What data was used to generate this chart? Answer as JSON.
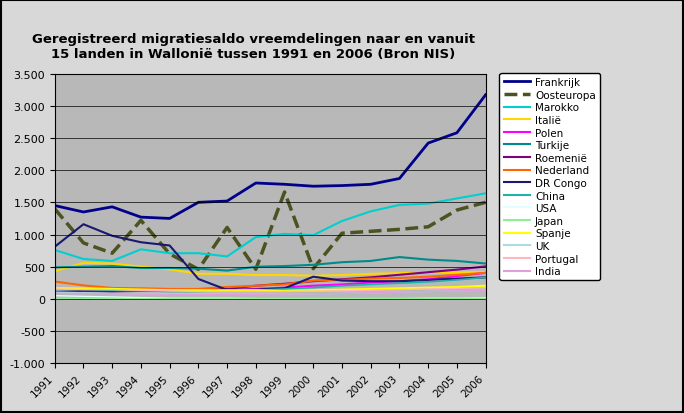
{
  "title": "Geregistreerd migratiesaldo vreemdelingen naar en vanuit\n15 landen in Wallonië tussen 1991 en 2006 (Bron NIS)",
  "years": [
    1991,
    1992,
    1993,
    1994,
    1995,
    1996,
    1997,
    1998,
    1999,
    2000,
    2001,
    2002,
    2003,
    2004,
    2005,
    2006
  ],
  "series": [
    {
      "name": "Frankrijk",
      "color": "#00008B",
      "linestyle": "-",
      "linewidth": 2.0,
      "values": [
        1450,
        1350,
        1430,
        1270,
        1250,
        1500,
        1520,
        1800,
        1780,
        1750,
        1760,
        1780,
        1870,
        2420,
        2580,
        3170
      ]
    },
    {
      "name": "Oosteuropa",
      "color": "#4B5320",
      "linestyle": "--",
      "linewidth": 2.5,
      "values": [
        1400,
        870,
        710,
        1220,
        700,
        460,
        1110,
        460,
        1660,
        470,
        1020,
        1050,
        1080,
        1120,
        1380,
        1500
      ]
    },
    {
      "name": "Marokko",
      "color": "#00CFCF",
      "linestyle": "-",
      "linewidth": 1.5,
      "values": [
        760,
        620,
        590,
        770,
        710,
        710,
        660,
        960,
        1010,
        990,
        1210,
        1360,
        1460,
        1480,
        1560,
        1640
      ]
    },
    {
      "name": "Italië",
      "color": "#FFD700",
      "linestyle": "-",
      "linewidth": 1.5,
      "values": [
        430,
        560,
        550,
        500,
        460,
        390,
        390,
        370,
        370,
        360,
        370,
        390,
        400,
        410,
        410,
        420
      ]
    },
    {
      "name": "Polen",
      "color": "#FF00FF",
      "linestyle": "-",
      "linewidth": 1.5,
      "values": [
        150,
        160,
        140,
        135,
        125,
        125,
        135,
        155,
        175,
        205,
        225,
        255,
        275,
        305,
        355,
        405
      ]
    },
    {
      "name": "Turkije",
      "color": "#008B8B",
      "linestyle": "-",
      "linewidth": 1.5,
      "values": [
        490,
        500,
        510,
        480,
        480,
        470,
        440,
        500,
        510,
        530,
        570,
        590,
        650,
        610,
        590,
        550
      ]
    },
    {
      "name": "Roemenië",
      "color": "#800080",
      "linestyle": "-",
      "linewidth": 1.5,
      "values": [
        105,
        125,
        115,
        125,
        135,
        145,
        155,
        205,
        235,
        275,
        305,
        335,
        375,
        415,
        455,
        505
      ]
    },
    {
      "name": "Nederland",
      "color": "#FF6600",
      "linestyle": "-",
      "linewidth": 1.5,
      "values": [
        270,
        210,
        170,
        165,
        155,
        155,
        185,
        205,
        225,
        285,
        295,
        315,
        325,
        345,
        375,
        405
      ]
    },
    {
      "name": "DR Congo",
      "color": "#191970",
      "linestyle": "-",
      "linewidth": 1.5,
      "values": [
        810,
        1160,
        980,
        880,
        830,
        310,
        140,
        145,
        165,
        345,
        285,
        275,
        275,
        295,
        315,
        335
      ]
    },
    {
      "name": "China",
      "color": "#20B2AA",
      "linestyle": "-",
      "linewidth": 1.2,
      "values": [
        145,
        145,
        135,
        125,
        115,
        115,
        125,
        135,
        155,
        175,
        205,
        225,
        245,
        265,
        295,
        335
      ]
    },
    {
      "name": "USA",
      "color": "#E0FFFF",
      "linestyle": "-",
      "linewidth": 1.0,
      "values": [
        50,
        40,
        30,
        20,
        10,
        10,
        10,
        5,
        5,
        5,
        5,
        5,
        5,
        10,
        10,
        15
      ]
    },
    {
      "name": "Japan",
      "color": "#90EE90",
      "linestyle": "-",
      "linewidth": 1.0,
      "values": [
        10,
        10,
        8,
        5,
        2,
        2,
        2,
        2,
        2,
        2,
        2,
        2,
        5,
        5,
        5,
        5
      ]
    },
    {
      "name": "Spanje",
      "color": "#FFFF00",
      "linestyle": "-",
      "linewidth": 1.5,
      "values": [
        165,
        165,
        155,
        145,
        135,
        135,
        135,
        135,
        125,
        135,
        145,
        155,
        165,
        175,
        185,
        205
      ]
    },
    {
      "name": "UK",
      "color": "#ADD8E6",
      "linestyle": "-",
      "linewidth": 1.0,
      "values": [
        105,
        95,
        85,
        85,
        80,
        80,
        75,
        75,
        75,
        80,
        85,
        95,
        105,
        115,
        125,
        135
      ]
    },
    {
      "name": "Portugal",
      "color": "#FFB6C1",
      "linestyle": "-",
      "linewidth": 1.0,
      "values": [
        155,
        145,
        145,
        135,
        125,
        115,
        115,
        115,
        115,
        120,
        125,
        135,
        145,
        155,
        165,
        175
      ]
    },
    {
      "name": "India",
      "color": "#DDA0DD",
      "linestyle": "-",
      "linewidth": 1.0,
      "values": [
        85,
        85,
        80,
        75,
        70,
        70,
        70,
        70,
        75,
        80,
        85,
        95,
        105,
        115,
        125,
        135
      ]
    }
  ],
  "ylim": [
    -1000,
    3500
  ],
  "yticks": [
    -1000,
    -500,
    0,
    500,
    1000,
    1500,
    2000,
    2500,
    3000,
    3500
  ],
  "ytick_labels": [
    "-1.000",
    "-500",
    "0",
    "500",
    "1.000",
    "1.500",
    "2.000",
    "2.500",
    "3.000",
    "3.500"
  ],
  "bg_color": "#C8C8C8",
  "plot_bg_color": "#B8B8B8",
  "outer_bg": "#D8D8D8",
  "legend_fontsize": 7.5,
  "title_fontsize": 9.5
}
